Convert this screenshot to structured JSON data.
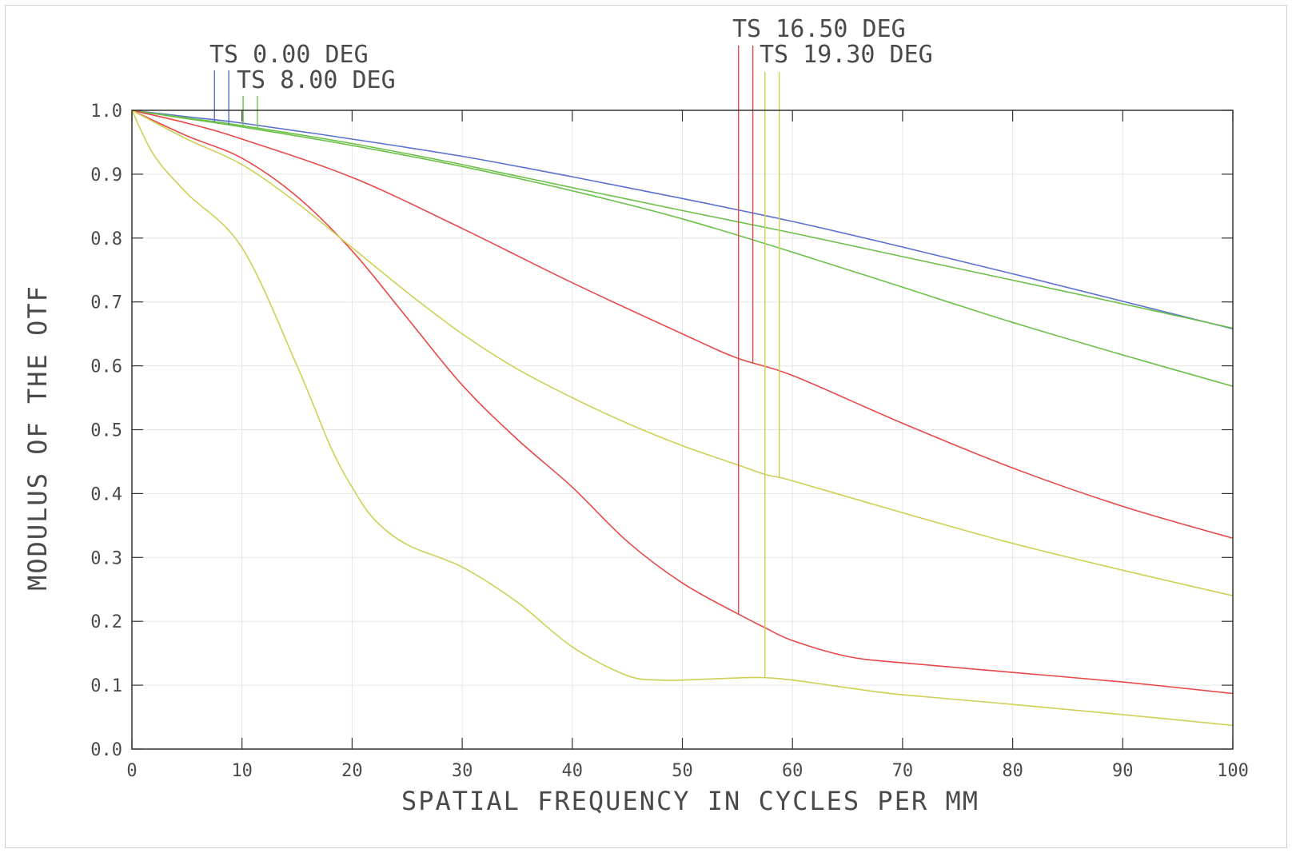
{
  "chart_data": {
    "type": "line",
    "xlabel": "SPATIAL FREQUENCY IN CYCLES PER MM",
    "ylabel": "MODULUS OF THE OTF",
    "xlim": [
      0,
      100
    ],
    "ylim": [
      0,
      1
    ],
    "grid": true,
    "x_ticks": [
      "0",
      "10",
      "20",
      "30",
      "40",
      "50",
      "60",
      "70",
      "80",
      "90",
      "100"
    ],
    "y_ticks": [
      "0.0",
      "0.1",
      "0.2",
      "0.3",
      "0.4",
      "0.5",
      "0.6",
      "0.7",
      "0.8",
      "0.9",
      "1.0"
    ],
    "field_labels": [
      {
        "text": "TS 0.00 DEG",
        "color": "#5a6fd0"
      },
      {
        "text": "TS 8.00 DEG",
        "color": "#6cc04a"
      },
      {
        "text": "TS 16.50 DEG",
        "color": "#e84848"
      },
      {
        "text": "TS 19.30 DEG",
        "color": "#cfcf55"
      }
    ],
    "series": [
      {
        "color": "#5a6fd0",
        "x": [
          0,
          5,
          10,
          20,
          30,
          40,
          50,
          60,
          70,
          80,
          90,
          100
        ],
        "y": [
          1.0,
          0.99,
          0.98,
          0.955,
          0.928,
          0.896,
          0.862,
          0.826,
          0.786,
          0.744,
          0.701,
          0.658
        ]
      },
      {
        "color": "#6cc04a",
        "x": [
          0,
          5,
          10,
          20,
          30,
          40,
          50,
          60,
          70,
          80,
          90,
          100
        ],
        "y": [
          1.0,
          0.988,
          0.976,
          0.948,
          0.915,
          0.879,
          0.843,
          0.808,
          0.771,
          0.734,
          0.697,
          0.659
        ]
      },
      {
        "color": "#6cc04a",
        "x": [
          0,
          5,
          10,
          20,
          30,
          40,
          50,
          60,
          70,
          80,
          90,
          100
        ],
        "y": [
          1.0,
          0.987,
          0.974,
          0.945,
          0.912,
          0.874,
          0.83,
          0.778,
          0.723,
          0.668,
          0.617,
          0.568
        ]
      },
      {
        "color": "#e84848",
        "x": [
          0,
          5,
          10,
          20,
          30,
          40,
          50,
          55,
          60,
          70,
          80,
          90,
          100
        ],
        "y": [
          1.0,
          0.98,
          0.955,
          0.895,
          0.815,
          0.73,
          0.65,
          0.612,
          0.585,
          0.51,
          0.44,
          0.38,
          0.33
        ]
      },
      {
        "color": "#e84848",
        "x": [
          0,
          5,
          10,
          15,
          20,
          25,
          30,
          35,
          40,
          45,
          50,
          55,
          57.5,
          60,
          65,
          70,
          80,
          90,
          100
        ],
        "y": [
          1.0,
          0.96,
          0.925,
          0.865,
          0.78,
          0.675,
          0.57,
          0.485,
          0.41,
          0.325,
          0.26,
          0.212,
          0.19,
          0.17,
          0.145,
          0.135,
          0.12,
          0.105,
          0.087
        ]
      },
      {
        "color": "#cfcf55",
        "x": [
          0,
          5,
          10,
          15,
          20,
          25,
          30,
          35,
          40,
          45,
          50,
          55,
          57.5,
          60,
          70,
          80,
          90,
          100
        ],
        "y": [
          1.0,
          0.955,
          0.915,
          0.855,
          0.785,
          0.715,
          0.65,
          0.595,
          0.55,
          0.51,
          0.475,
          0.445,
          0.43,
          0.42,
          0.37,
          0.322,
          0.28,
          0.24
        ]
      },
      {
        "color": "#cfcf55",
        "x": [
          0,
          2,
          5,
          10,
          15,
          18,
          20,
          22,
          25,
          30,
          35,
          40,
          45,
          48,
          50,
          53,
          57,
          60,
          65,
          70,
          80,
          90,
          100
        ],
        "y": [
          1.0,
          0.93,
          0.87,
          0.785,
          0.6,
          0.475,
          0.41,
          0.36,
          0.32,
          0.285,
          0.23,
          0.16,
          0.115,
          0.108,
          0.108,
          0.11,
          0.112,
          0.108,
          0.096,
          0.085,
          0.07,
          0.054,
          0.037
        ]
      }
    ],
    "markers": [
      {
        "color": "#5a6fd0",
        "x": 7.5,
        "y_low": 0.982
      },
      {
        "color": "#5a6fd0",
        "x": 8.8,
        "y_low": 0.978
      },
      {
        "color": "#6cc04a",
        "x": 10.1,
        "y_low": 0.975
      },
      {
        "color": "#6cc04a",
        "x": 11.4,
        "y_low": 0.972
      },
      {
        "color": "#e84848",
        "x": 55.1,
        "y_low": 0.211
      },
      {
        "color": "#e84848",
        "x": 56.4,
        "y_low": 0.605
      },
      {
        "color": "#cfcf55",
        "x": 57.5,
        "y_low": 0.113
      },
      {
        "color": "#cfcf55",
        "x": 58.8,
        "y_low": 0.425
      }
    ]
  }
}
